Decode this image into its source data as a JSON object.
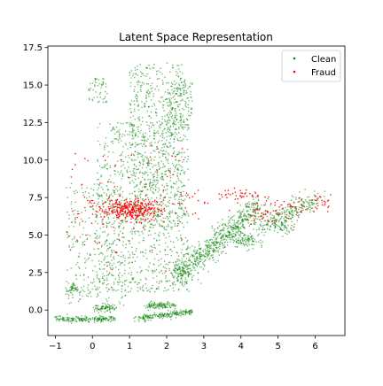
{
  "chart_data": {
    "type": "scatter",
    "title": "Latent Space Representation",
    "xlabel": "",
    "ylabel": "",
    "xlim": [
      -1.2,
      6.8
    ],
    "ylim": [
      -1.7,
      17.6
    ],
    "xticks": [
      -1,
      0,
      1,
      2,
      3,
      4,
      5,
      6
    ],
    "xtick_labels": [
      "−1",
      "0",
      "1",
      "2",
      "3",
      "4",
      "5",
      "6"
    ],
    "yticks": [
      0.0,
      2.5,
      5.0,
      7.5,
      10.0,
      12.5,
      15.0,
      17.5
    ],
    "ytick_labels": [
      "0.0",
      "2.5",
      "5.0",
      "7.5",
      "10.0",
      "12.5",
      "15.0",
      "17.5"
    ],
    "grid": false,
    "legend": {
      "position": "top-right",
      "entries": [
        "Clean",
        "Fraud"
      ]
    },
    "series": [
      {
        "name": "Clean",
        "color": "#008000",
        "clusters": [
          {
            "kind": "box",
            "x": [
              0.1,
              2.6
            ],
            "y": [
              1.2,
              12.5
            ],
            "n": 900
          },
          {
            "kind": "box",
            "x": [
              1.0,
              2.5
            ],
            "y": [
              5.5,
              16.5
            ],
            "n": 600
          },
          {
            "kind": "box",
            "x": [
              -0.7,
              0.9
            ],
            "y": [
              0.3,
              8.5
            ],
            "n": 300
          },
          {
            "kind": "box",
            "x": [
              2.0,
              2.7
            ],
            "y": [
              12.0,
              15.3
            ],
            "n": 150
          },
          {
            "kind": "box",
            "x": [
              -0.1,
              0.4
            ],
            "y": [
              13.8,
              15.5
            ],
            "n": 50
          },
          {
            "kind": "line",
            "x": [
              2.2,
              4.5
            ],
            "y": [
              2.0,
              7.0
            ],
            "spread": 0.35,
            "n": 700
          },
          {
            "kind": "line",
            "x": [
              4.5,
              6.0
            ],
            "y": [
              5.5,
              7.5
            ],
            "spread": 0.3,
            "n": 250
          },
          {
            "kind": "line",
            "x": [
              -1.0,
              0.6
            ],
            "y": [
              -0.6,
              -0.6
            ],
            "spread": 0.1,
            "n": 200
          },
          {
            "kind": "line",
            "x": [
              1.1,
              2.7
            ],
            "y": [
              -0.6,
              -0.1
            ],
            "spread": 0.1,
            "n": 200
          },
          {
            "kind": "line",
            "x": [
              1.5,
              2.2
            ],
            "y": [
              0.3,
              0.3
            ],
            "spread": 0.12,
            "n": 120
          },
          {
            "kind": "line",
            "x": [
              0.1,
              0.6
            ],
            "y": [
              0.1,
              0.1
            ],
            "spread": 0.12,
            "n": 80
          },
          {
            "kind": "line",
            "x": [
              -0.7,
              -0.4
            ],
            "y": [
              1.4,
              1.4
            ],
            "spread": 0.2,
            "n": 50
          },
          {
            "kind": "line",
            "x": [
              3.9,
              4.4
            ],
            "y": [
              4.6,
              4.6
            ],
            "spread": 0.25,
            "n": 90
          },
          {
            "kind": "line",
            "x": [
              5.0,
              5.3
            ],
            "y": [
              5.4,
              5.5
            ],
            "spread": 0.2,
            "n": 40
          }
        ]
      },
      {
        "name": "Fraud",
        "color": "#ff0000",
        "clusters": [
          {
            "kind": "gauss",
            "cx": 1.05,
            "cy": 6.7,
            "sx": 0.45,
            "sy": 0.35,
            "n": 350
          },
          {
            "kind": "box",
            "x": [
              -0.7,
              2.5
            ],
            "y": [
              1.5,
              11.0
            ],
            "n": 70
          },
          {
            "kind": "line",
            "x": [
              4.0,
              6.5
            ],
            "y": [
              6.3,
              7.3
            ],
            "spread": 0.35,
            "n": 90
          },
          {
            "kind": "line",
            "x": [
              3.4,
              4.6
            ],
            "y": [
              7.7,
              7.6
            ],
            "spread": 0.2,
            "n": 40
          },
          {
            "kind": "box",
            "x": [
              2.4,
              3.2
            ],
            "y": [
              6.0,
              8.0
            ],
            "n": 15
          }
        ]
      }
    ]
  }
}
